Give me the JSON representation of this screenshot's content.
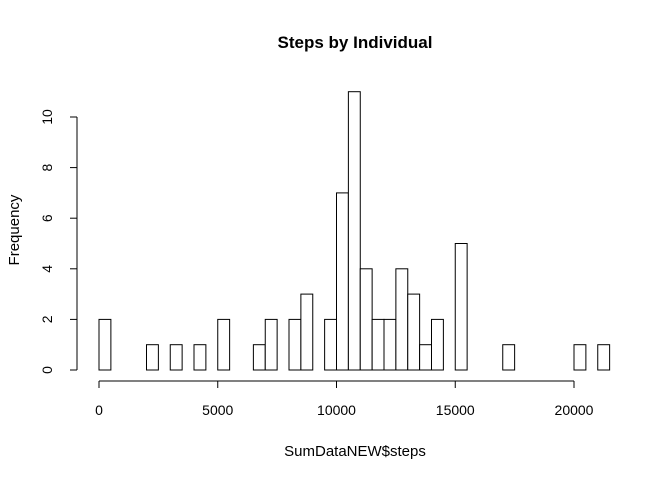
{
  "chart_data": {
    "type": "bar",
    "title": "Steps by Individual",
    "xlabel": "SumDataNEW$steps",
    "ylabel": "Frequency",
    "bin_width": 500,
    "xlim": [
      0,
      21500
    ],
    "ylim": [
      0,
      11
    ],
    "x_ticks": [
      0,
      5000,
      10000,
      15000,
      20000
    ],
    "y_ticks": [
      0,
      2,
      4,
      6,
      8,
      10
    ],
    "bin_start": 0,
    "counts": [
      2,
      0,
      0,
      0,
      1,
      0,
      1,
      0,
      1,
      0,
      2,
      0,
      0,
      1,
      2,
      0,
      2,
      3,
      0,
      2,
      7,
      11,
      4,
      2,
      2,
      4,
      3,
      1,
      2,
      0,
      5,
      0,
      0,
      0,
      1,
      0,
      0,
      0,
      0,
      0,
      1,
      0,
      1
    ],
    "grid": false,
    "legend": "none"
  }
}
